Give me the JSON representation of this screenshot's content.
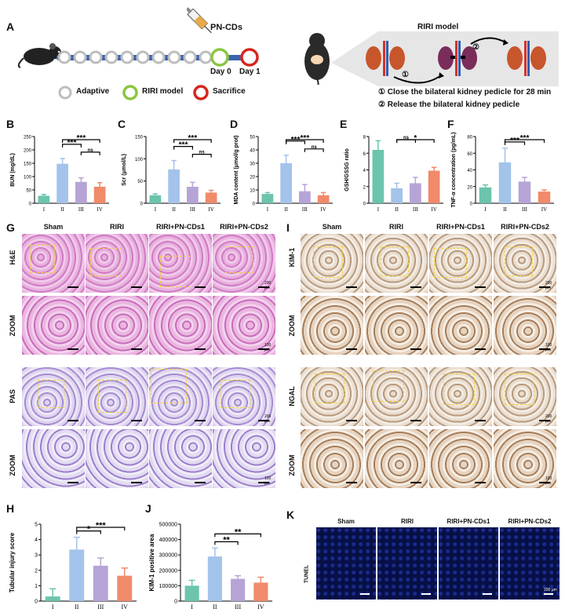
{
  "panels": {
    "A": "A",
    "B": "B",
    "C": "C",
    "D": "D",
    "E": "E",
    "F": "F",
    "G": "G",
    "H": "H",
    "I": "I",
    "J": "J",
    "K": "K"
  },
  "schematic": {
    "drug": "PN-CDs",
    "day0": "Day 0",
    "day1": "Day 1",
    "legend": {
      "adaptive": "Adaptive",
      "riri": "RIRI model",
      "sacrifice": "Sacrifice"
    },
    "model_title": "RIRI model",
    "step1_num": "①",
    "step2_num": "②",
    "step1": "① Close the bilateral kidney pedicle for 28 min",
    "step2": "② Release the bilateral kidney pedicle"
  },
  "colors": {
    "g1": "#6cc4ad",
    "g2": "#a3c3ea",
    "g3": "#b7a4d6",
    "g4": "#f08a6a"
  },
  "histology": {
    "headers": [
      "Sham",
      "RIRI",
      "RIRI+PN-CDs1",
      "RIRI+PN-CDs2"
    ],
    "g_rows": [
      "H&E",
      "ZOOM",
      "PAS",
      "ZOOM"
    ],
    "i_rows": [
      "KIM-1",
      "ZOOM",
      "NGAL",
      "ZOOM"
    ],
    "k_row": "TUNEL",
    "scale_200": "200 μm",
    "scale_100": "100 μm"
  },
  "chart_data": [
    {
      "id": "B",
      "type": "bar",
      "ylabel": "BUN (mg/dL)",
      "ylim": [
        0,
        250
      ],
      "yticks": [
        0,
        50,
        100,
        150,
        200,
        250
      ],
      "categories": [
        "I",
        "II",
        "III",
        "IV"
      ],
      "values": [
        28,
        148,
        80,
        62
      ],
      "errors": [
        5,
        20,
        15,
        15
      ],
      "brackets": [
        {
          "from": 1,
          "to": 3,
          "label": "***"
        },
        {
          "from": 1,
          "to": 2,
          "label": "***"
        },
        {
          "from": 2,
          "to": 3,
          "label": "ns"
        }
      ]
    },
    {
      "id": "C",
      "type": "bar",
      "ylabel": "Scr (μmol/L)",
      "ylim": [
        0,
        150
      ],
      "yticks": [
        0,
        50,
        100,
        150
      ],
      "categories": [
        "I",
        "II",
        "III",
        "IV"
      ],
      "values": [
        18,
        76,
        37,
        24
      ],
      "errors": [
        3,
        20,
        10,
        5
      ],
      "brackets": [
        {
          "from": 1,
          "to": 3,
          "label": "***"
        },
        {
          "from": 1,
          "to": 2,
          "label": "***"
        },
        {
          "from": 2,
          "to": 3,
          "label": "ns"
        }
      ]
    },
    {
      "id": "D",
      "type": "bar",
      "ylabel": "MDA content (μmol/g prot)",
      "ylim": [
        0,
        50
      ],
      "yticks": [
        0,
        10,
        20,
        30,
        40,
        50
      ],
      "categories": [
        "I",
        "II",
        "III",
        "IV"
      ],
      "values": [
        7,
        30,
        9,
        6
      ],
      "errors": [
        1,
        6,
        5,
        2
      ],
      "brackets": [
        {
          "from": 1,
          "to": 3,
          "label": "***"
        },
        {
          "from": 1,
          "to": 2,
          "label": "***"
        },
        {
          "from": 2,
          "to": 3,
          "label": "ns"
        }
      ]
    },
    {
      "id": "E",
      "type": "bar",
      "ylabel": "GSH/GSSG ratio",
      "ylim": [
        0,
        8
      ],
      "yticks": [
        0,
        2,
        4,
        6,
        8
      ],
      "categories": [
        "I",
        "II",
        "III",
        "IV"
      ],
      "values": [
        6.4,
        1.8,
        2.4,
        3.9
      ],
      "errors": [
        1.1,
        0.6,
        0.7,
        0.4
      ],
      "brackets": [
        {
          "from": 1,
          "to": 3,
          "label": "*"
        },
        {
          "from": 1,
          "to": 2,
          "label": "ns"
        }
      ]
    },
    {
      "id": "F",
      "type": "bar",
      "ylabel": "TNF-α concentration (pg/mL)",
      "ylim": [
        0,
        80
      ],
      "yticks": [
        0,
        20,
        40,
        60,
        80
      ],
      "categories": [
        "I",
        "II",
        "III",
        "IV"
      ],
      "values": [
        19,
        49,
        26,
        14
      ],
      "errors": [
        3,
        17,
        5,
        2
      ],
      "brackets": [
        {
          "from": 1,
          "to": 3,
          "label": "***"
        },
        {
          "from": 1,
          "to": 2,
          "label": "***"
        }
      ]
    },
    {
      "id": "H",
      "type": "bar",
      "ylabel": "Tubular injury score",
      "ylim": [
        0,
        5
      ],
      "yticks": [
        0,
        1,
        2,
        3,
        4,
        5
      ],
      "categories": [
        "I",
        "II",
        "III",
        "IV"
      ],
      "values": [
        0.3,
        3.35,
        2.3,
        1.65
      ],
      "errors": [
        0.5,
        0.8,
        0.5,
        0.5
      ],
      "brackets": [
        {
          "from": 1,
          "to": 3,
          "label": "***"
        },
        {
          "from": 1,
          "to": 2,
          "label": "*"
        }
      ]
    },
    {
      "id": "J",
      "type": "bar",
      "ylabel": "KIM-1 positive area",
      "ylim": [
        0,
        500000
      ],
      "yticks": [
        0,
        100000,
        200000,
        300000,
        400000,
        500000
      ],
      "categories": [
        "I",
        "II",
        "III",
        "IV"
      ],
      "values": [
        100000,
        290000,
        145000,
        120000
      ],
      "errors": [
        35000,
        55000,
        20000,
        35000
      ],
      "brackets": [
        {
          "from": 1,
          "to": 3,
          "label": "**"
        },
        {
          "from": 1,
          "to": 2,
          "label": "**"
        }
      ]
    }
  ]
}
